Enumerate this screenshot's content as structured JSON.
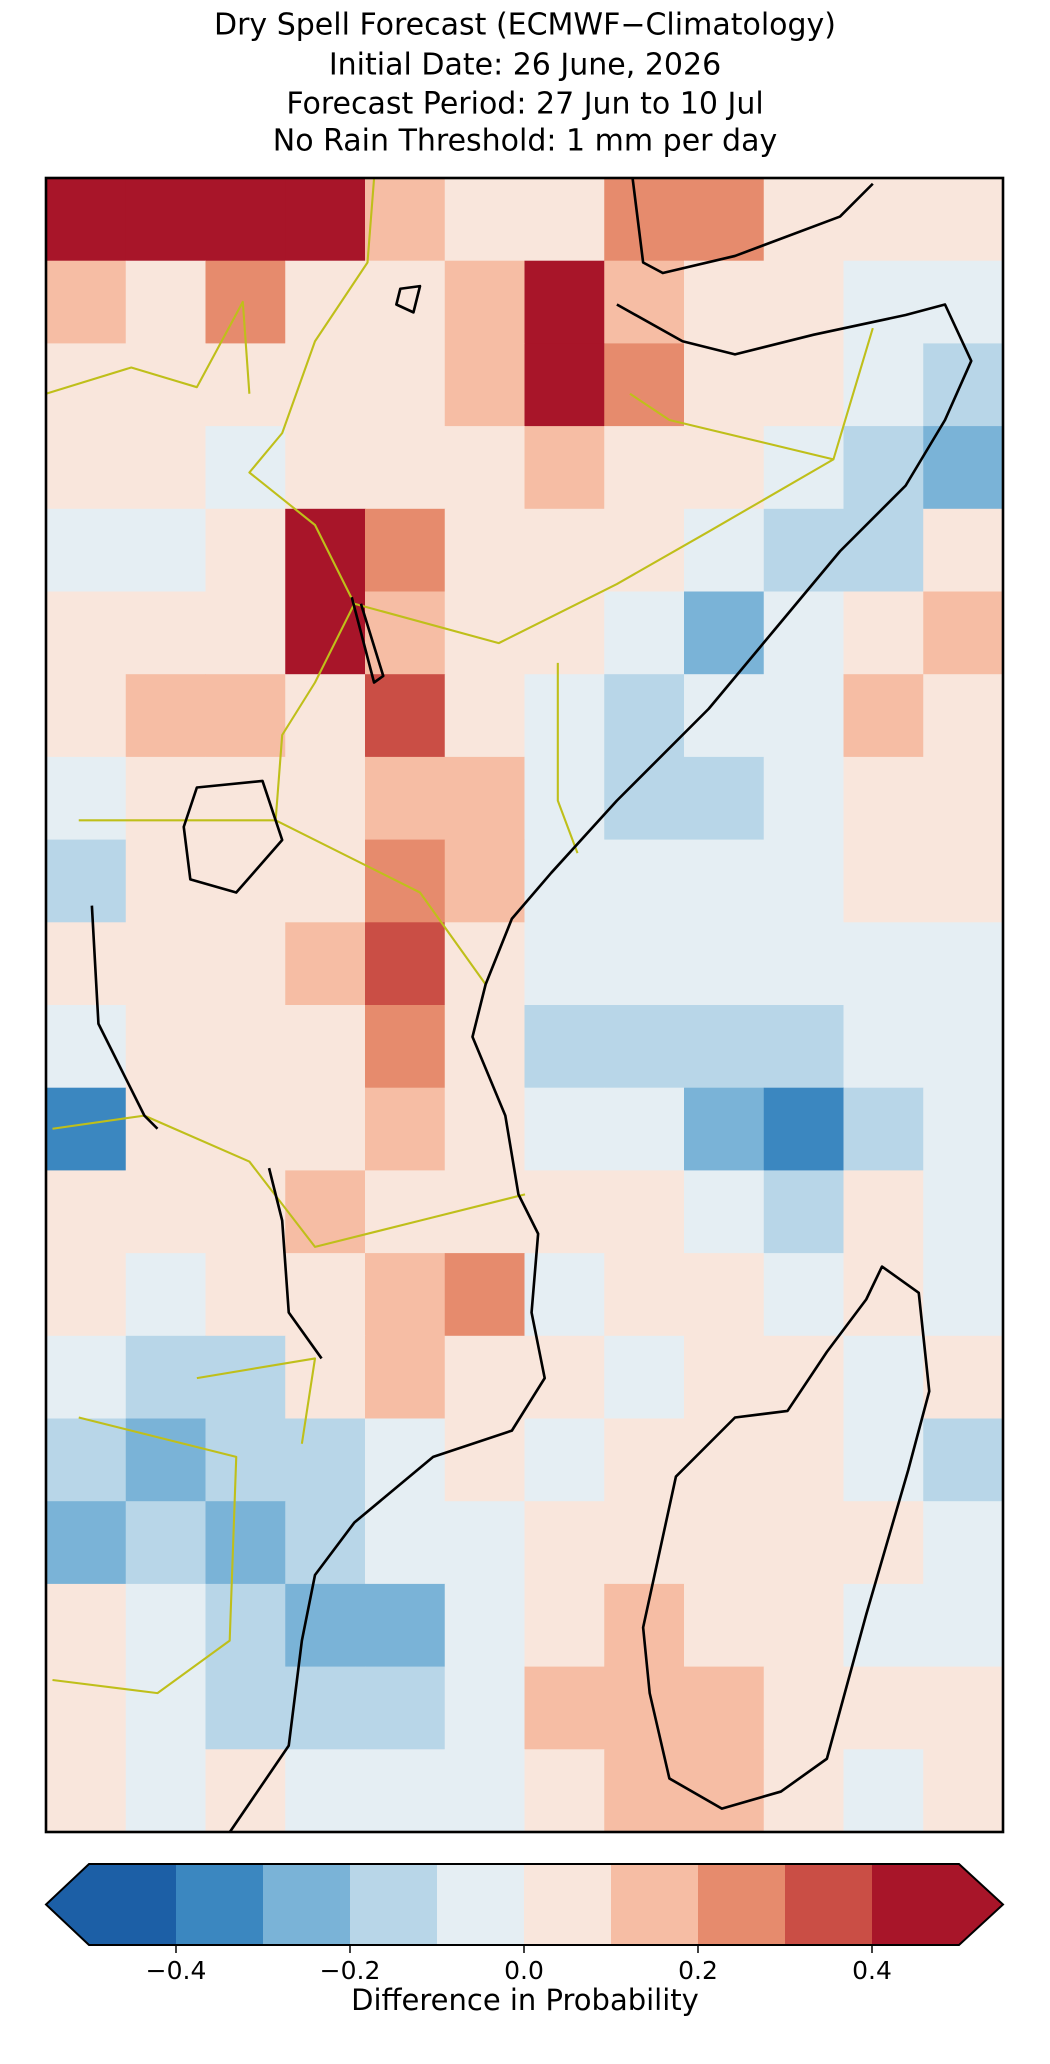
{
  "chart_data": {
    "type": "heatmap",
    "title": [
      "Dry Spell Forecast (ECMWF−Climatology)",
      "Initial Date: 26 June, 2026",
      "Forecast Period: 27 Jun to 10 Jul",
      "No Rain Threshold: 1 mm per day"
    ],
    "values": [
      [
        0.5,
        0.5,
        0.5,
        0.45,
        0.15,
        0.05,
        0.05,
        0.3,
        0.25,
        0.05,
        0.05,
        0.05
      ],
      [
        0.15,
        0.1,
        0.3,
        0.1,
        0.05,
        0.2,
        0.5,
        0.15,
        0.05,
        0.05,
        0.0,
        0.0
      ],
      [
        0.05,
        0.05,
        0.1,
        0.05,
        0.05,
        0.2,
        0.5,
        0.3,
        0.05,
        0.05,
        -0.05,
        -0.15
      ],
      [
        0.05,
        0.05,
        0.0,
        0.05,
        0.05,
        0.1,
        0.2,
        0.05,
        0.05,
        0.0,
        -0.15,
        -0.2
      ],
      [
        0.0,
        0.0,
        0.05,
        0.45,
        0.3,
        0.1,
        0.05,
        0.05,
        0.0,
        -0.15,
        -0.1,
        0.05
      ],
      [
        0.05,
        0.1,
        0.05,
        0.5,
        0.15,
        0.05,
        0.05,
        -0.05,
        -0.2,
        -0.05,
        0.1,
        0.2
      ],
      [
        0.1,
        0.15,
        0.15,
        0.05,
        0.4,
        0.05,
        0.0,
        -0.1,
        -0.05,
        0.0,
        0.15,
        0.1
      ],
      [
        0.0,
        0.05,
        0.1,
        0.05,
        0.2,
        0.15,
        -0.05,
        -0.1,
        -0.1,
        0.0,
        0.05,
        0.1
      ],
      [
        -0.1,
        0.1,
        0.05,
        0.05,
        0.25,
        0.2,
        -0.05,
        0.0,
        -0.05,
        0.0,
        0.05,
        0.05
      ],
      [
        0.05,
        0.05,
        0.05,
        0.15,
        0.35,
        0.1,
        -0.05,
        -0.05,
        0.0,
        -0.05,
        0.0,
        0.0
      ],
      [
        0.0,
        0.05,
        0.05,
        0.05,
        0.3,
        0.1,
        -0.1,
        -0.1,
        -0.15,
        -0.1,
        0.0,
        -0.05
      ],
      [
        -0.3,
        0.05,
        0.05,
        0.1,
        0.15,
        0.1,
        -0.05,
        0.0,
        -0.2,
        -0.3,
        -0.1,
        -0.05
      ],
      [
        0.05,
        0.05,
        0.05,
        0.15,
        0.1,
        0.05,
        0.05,
        0.1,
        0.0,
        -0.15,
        0.05,
        0.0
      ],
      [
        0.05,
        0.0,
        0.05,
        0.05,
        0.2,
        0.25,
        0.0,
        0.05,
        0.05,
        0.0,
        0.05,
        0.0
      ],
      [
        -0.05,
        -0.1,
        -0.15,
        0.05,
        0.15,
        0.1,
        0.05,
        0.0,
        0.05,
        0.05,
        0.0,
        0.05
      ],
      [
        -0.1,
        -0.2,
        -0.15,
        -0.1,
        0.0,
        0.05,
        0.0,
        0.05,
        0.05,
        0.05,
        0.0,
        -0.1
      ],
      [
        -0.2,
        -0.15,
        -0.2,
        -0.1,
        -0.05,
        0.0,
        0.05,
        0.05,
        0.05,
        0.1,
        0.05,
        -0.05
      ],
      [
        0.05,
        0.0,
        -0.15,
        -0.2,
        -0.25,
        0.0,
        0.1,
        0.15,
        0.05,
        0.05,
        0.0,
        0.0
      ],
      [
        0.05,
        0.0,
        -0.1,
        -0.1,
        -0.15,
        0.0,
        0.15,
        0.2,
        0.15,
        0.05,
        0.05,
        0.1
      ],
      [
        0.05,
        0.0,
        0.05,
        -0.05,
        -0.05,
        -0.05,
        0.05,
        0.2,
        0.15,
        0.05,
        0.0,
        0.05
      ]
    ],
    "levels": [
      -0.5,
      -0.4,
      -0.3,
      -0.2,
      -0.1,
      0,
      0.1,
      0.2,
      0.3,
      0.4,
      0.5
    ],
    "colors": [
      "#1c5fa6",
      "#3b87c0",
      "#7ab3d7",
      "#b8d6e8",
      "#e5eef3",
      "#f9e6dc",
      "#f6bda4",
      "#e68b6d",
      "#ca4e45",
      "#a81529"
    ],
    "extend_colors": [
      "#1c5fa6",
      "#a81529"
    ],
    "colorbar_ticks": [
      {
        "value": -0.4,
        "label": "−0.4"
      },
      {
        "value": -0.2,
        "label": "−0.2"
      },
      {
        "value": 0,
        "label": "0.0"
      },
      0.2,
      0.4
    ],
    "colorbar_label": "Difference in Probability"
  }
}
